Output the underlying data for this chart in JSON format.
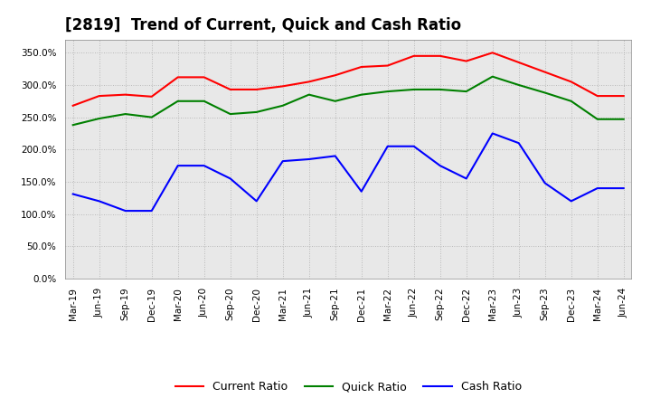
{
  "title": "[2819]  Trend of Current, Quick and Cash Ratio",
  "labels": [
    "Mar-19",
    "Jun-19",
    "Sep-19",
    "Dec-19",
    "Mar-20",
    "Jun-20",
    "Sep-20",
    "Dec-20",
    "Mar-21",
    "Jun-21",
    "Sep-21",
    "Dec-21",
    "Mar-22",
    "Jun-22",
    "Sep-22",
    "Dec-22",
    "Mar-23",
    "Jun-23",
    "Sep-23",
    "Dec-23",
    "Mar-24",
    "Jun-24"
  ],
  "current_ratio": [
    268,
    283,
    285,
    282,
    312,
    312,
    293,
    293,
    298,
    305,
    315,
    328,
    330,
    345,
    345,
    337,
    350,
    335,
    320,
    305,
    283,
    283
  ],
  "quick_ratio": [
    238,
    248,
    255,
    250,
    275,
    275,
    255,
    258,
    268,
    285,
    275,
    285,
    290,
    293,
    293,
    290,
    313,
    300,
    288,
    275,
    247,
    247
  ],
  "cash_ratio": [
    131,
    120,
    105,
    105,
    175,
    175,
    155,
    120,
    182,
    185,
    190,
    135,
    205,
    205,
    175,
    155,
    225,
    210,
    148,
    120,
    140,
    140
  ],
  "current_color": "#ff0000",
  "quick_color": "#008000",
  "cash_color": "#0000ff",
  "ylim": [
    0,
    370
  ],
  "yticks": [
    0,
    50,
    100,
    150,
    200,
    250,
    300,
    350
  ],
  "plot_bg_color": "#e8e8e8",
  "fig_bg_color": "#ffffff",
  "grid_color": "#aaaaaa",
  "title_fontsize": 12,
  "line_width": 1.5
}
